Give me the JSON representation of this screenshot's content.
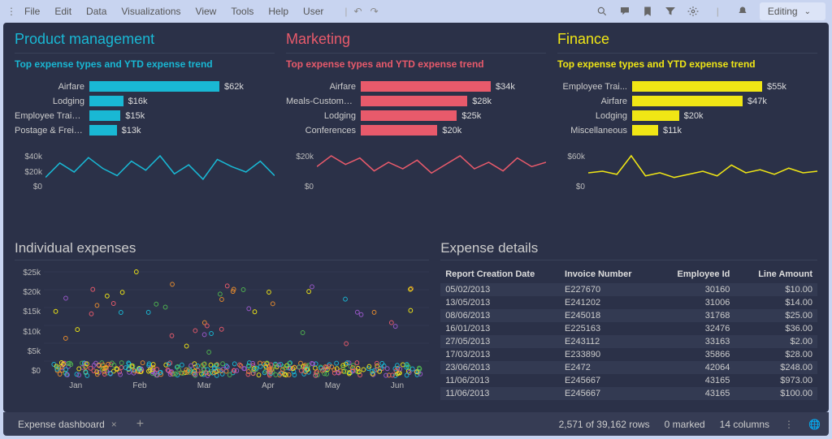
{
  "menubar": {
    "items": [
      "File",
      "Edit",
      "Data",
      "Visualizations",
      "View",
      "Tools",
      "Help",
      "User"
    ],
    "editing_label": "Editing"
  },
  "panels": [
    {
      "title": "Product management",
      "title_color": "#19b8d4",
      "subtitle": "Top expense types and YTD expense trend",
      "subtitle_color": "#19b8d4",
      "bar_color": "#19b8d4",
      "bars": [
        {
          "label": "Airfare",
          "value": "$62k",
          "pct": 100
        },
        {
          "label": "Lodging",
          "value": "$16k",
          "pct": 26
        },
        {
          "label": "Employee Traini...",
          "value": "$15k",
          "pct": 24
        },
        {
          "label": "Postage & Freig...",
          "value": "$13k",
          "pct": 21
        }
      ],
      "spark_yticks": [
        "$40k",
        "$20k",
        "$0"
      ],
      "spark_color": "#19b8d4",
      "spark_points": [
        12,
        28,
        18,
        34,
        22,
        14,
        30,
        20,
        36,
        16,
        26,
        10,
        32,
        24,
        18,
        30,
        14
      ]
    },
    {
      "title": "Marketing",
      "title_color": "#e85a6b",
      "subtitle": "Top expense types and YTD expense trend",
      "subtitle_color": "#e85a6b",
      "bar_color": "#e85a6b",
      "bars": [
        {
          "label": "Airfare",
          "value": "$34k",
          "pct": 100
        },
        {
          "label": "Meals-Customer Pr...",
          "value": "$28k",
          "pct": 82
        },
        {
          "label": "Lodging",
          "value": "$25k",
          "pct": 74
        },
        {
          "label": "Conferences",
          "value": "$20k",
          "pct": 59
        }
      ],
      "spark_yticks": [
        "$20k",
        "$0"
      ],
      "spark_color": "#e85a6b",
      "spark_points": [
        20,
        30,
        22,
        28,
        16,
        24,
        18,
        26,
        14,
        22,
        30,
        18,
        24,
        16,
        28,
        20,
        24
      ]
    },
    {
      "title": "Finance",
      "title_color": "#f0e615",
      "subtitle": "Top expense types and YTD expense trend",
      "subtitle_color": "#f0e615",
      "bar_color": "#f0e615",
      "bars": [
        {
          "label": "Employee Trai...",
          "value": "$55k",
          "pct": 100
        },
        {
          "label": "Airfare",
          "value": "$47k",
          "pct": 85
        },
        {
          "label": "Lodging",
          "value": "$20k",
          "pct": 36
        },
        {
          "label": "Miscellaneous",
          "value": "$11k",
          "pct": 20
        }
      ],
      "spark_yticks": [
        "$60k",
        "$0"
      ],
      "spark_color": "#f0e615",
      "spark_points": [
        20,
        22,
        18,
        42,
        16,
        20,
        14,
        18,
        22,
        16,
        30,
        20,
        24,
        18,
        26,
        20,
        22
      ]
    }
  ],
  "individual": {
    "title": "Individual expenses",
    "yticks": [
      "$25k",
      "$20k",
      "$15k",
      "$10k",
      "$5k",
      "$0"
    ],
    "xticks": [
      "Jan",
      "Feb",
      "Mar",
      "Apr",
      "May",
      "Jun"
    ],
    "colors": [
      "#19b8d4",
      "#e85a6b",
      "#f0e615",
      "#4fb34f",
      "#e88c2e",
      "#9958c9"
    ]
  },
  "details": {
    "title": "Expense details",
    "columns": [
      "Report Creation Date",
      "Invoice Number",
      "Employee Id",
      "Line Amount"
    ],
    "rows": [
      [
        "05/02/2013",
        "E227670",
        "30160",
        "$10.00"
      ],
      [
        "13/05/2013",
        "E241202",
        "31006",
        "$14.00"
      ],
      [
        "08/06/2013",
        "E245018",
        "31768",
        "$25.00"
      ],
      [
        "16/01/2013",
        "E225163",
        "32476",
        "$36.00"
      ],
      [
        "27/05/2013",
        "E243112",
        "33163",
        "$2.00"
      ],
      [
        "17/03/2013",
        "E233890",
        "35866",
        "$28.00"
      ],
      [
        "23/06/2013",
        "E2472",
        "42064",
        "$248.00"
      ],
      [
        "11/06/2013",
        "E245667",
        "43165",
        "$973.00"
      ],
      [
        "11/06/2013",
        "E245667",
        "43165",
        "$100.00"
      ]
    ]
  },
  "statusbar": {
    "tab_name": "Expense dashboard",
    "rows_text": "2,571 of 39,162 rows",
    "marked_text": "0 marked",
    "columns_text": "14 columns"
  }
}
